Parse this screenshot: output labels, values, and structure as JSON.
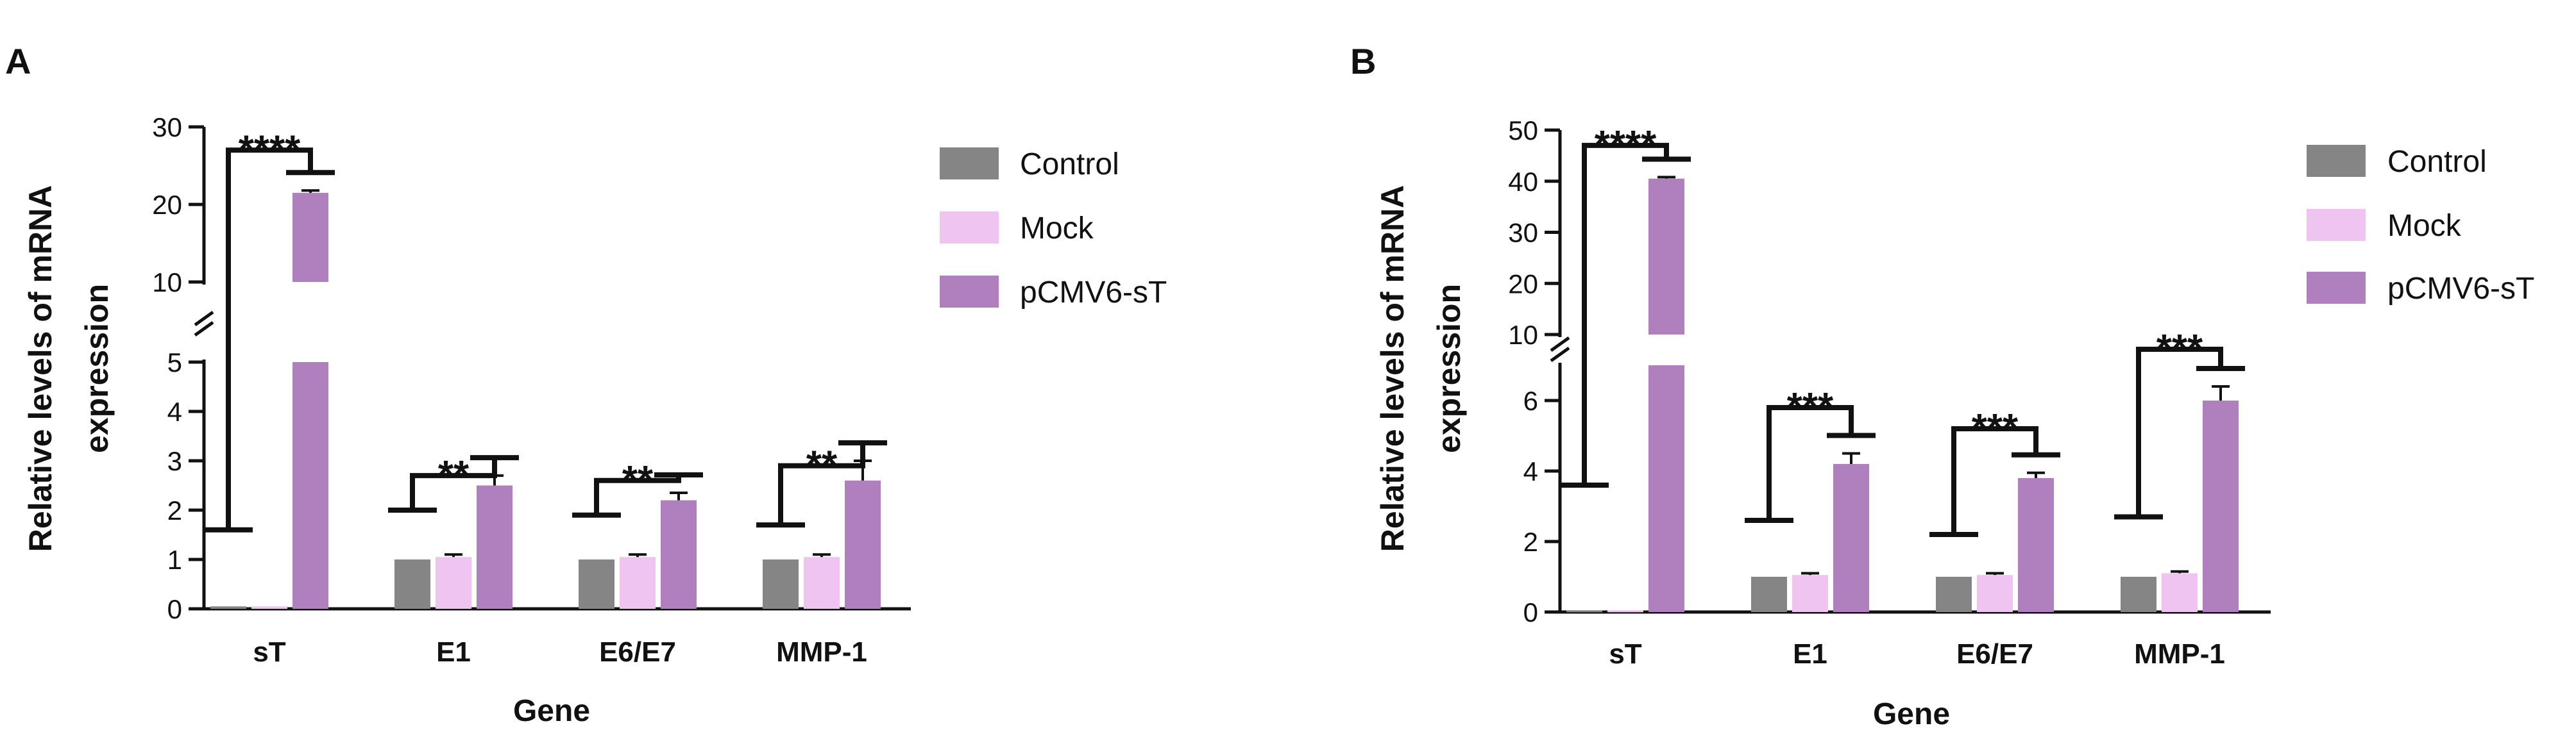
{
  "colors": {
    "Control": "#858585",
    "Mock": "#efc4f0",
    "pCMV6-sT": "#b07fbe",
    "axis": "#111111"
  },
  "chart_data": [
    {
      "panel": "A",
      "type": "bar",
      "xlabel": "Gene",
      "ylabel_line1": "Relative levels of mRNA",
      "ylabel_line2": "expression",
      "categories": [
        "sT",
        "E1",
        "E6/E7",
        "MMP-1"
      ],
      "series": [
        {
          "name": "Control",
          "values": [
            0.05,
            1.0,
            1.0,
            1.0
          ],
          "errors": [
            0,
            0,
            0,
            0
          ]
        },
        {
          "name": "Mock",
          "values": [
            0.05,
            1.05,
            1.05,
            1.05
          ],
          "errors": [
            0,
            0.05,
            0.05,
            0.05
          ]
        },
        {
          "name": "pCMV6-sT",
          "values": [
            21.5,
            2.5,
            2.2,
            2.6
          ],
          "errors": [
            0.3,
            0.2,
            0.15,
            0.4
          ]
        }
      ],
      "y_lower_ticks": [
        "0",
        "1",
        "2",
        "3",
        "4",
        "5"
      ],
      "y_upper_ticks": [
        "10",
        "20",
        "30"
      ],
      "ylim_lower": [
        0,
        5
      ],
      "ylim_upper": [
        10,
        30
      ],
      "significance": [
        {
          "category": "sT",
          "label": "****",
          "left_level": 1.6,
          "top_level": 27
        },
        {
          "category": "E1",
          "label": "**",
          "left_level": 2.0,
          "top_level": 2.7
        },
        {
          "category": "E6/E7",
          "label": "**",
          "left_level": 1.9,
          "top_level": 2.6
        },
        {
          "category": "MMP-1",
          "label": "**",
          "left_level": 1.7,
          "top_level": 2.9
        }
      ]
    },
    {
      "panel": "B",
      "type": "bar",
      "xlabel": "Gene",
      "ylabel_line1": "Relative levels of mRNA",
      "ylabel_line2": "expression",
      "categories": [
        "sT",
        "E1",
        "E6/E7",
        "MMP-1"
      ],
      "series": [
        {
          "name": "Control",
          "values": [
            0.05,
            1.0,
            1.0,
            1.0
          ],
          "errors": [
            0,
            0,
            0,
            0
          ]
        },
        {
          "name": "Mock",
          "values": [
            0.05,
            1.05,
            1.05,
            1.1
          ],
          "errors": [
            0,
            0.05,
            0.05,
            0.05
          ]
        },
        {
          "name": "pCMV6-sT",
          "values": [
            40.5,
            4.2,
            3.8,
            6.0
          ],
          "errors": [
            0.3,
            0.3,
            0.15,
            0.4
          ]
        }
      ],
      "y_lower_ticks": [
        "0",
        "2",
        "4",
        "6"
      ],
      "y_upper_ticks": [
        "10",
        "20",
        "30",
        "40",
        "50"
      ],
      "ylim_lower": [
        0,
        7
      ],
      "ylim_upper": [
        10,
        50
      ],
      "significance": [
        {
          "category": "sT",
          "label": "****",
          "left_level": 3.6,
          "top_level": 47
        },
        {
          "category": "E1",
          "label": "***",
          "left_level": 2.6,
          "top_level": 5.8
        },
        {
          "category": "E6/E7",
          "label": "***",
          "left_level": 2.2,
          "top_level": 5.2
        },
        {
          "category": "MMP-1",
          "label": "***",
          "left_level": 2.7,
          "top_level": 7.5
        }
      ]
    }
  ],
  "legend": {
    "items": [
      "Control",
      "Mock",
      "pCMV6-sT"
    ]
  }
}
